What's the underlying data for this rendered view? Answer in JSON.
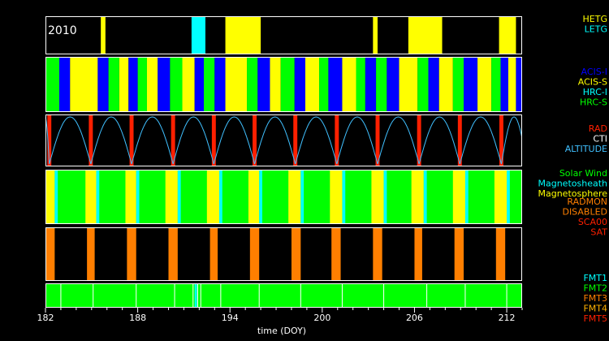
{
  "chart_data": {
    "type": "timeline",
    "year_label": "2010",
    "xlabel": "time (DOY)",
    "xlim": [
      182,
      213
    ],
    "xticks": [
      "182",
      "188",
      "194",
      "200",
      "206",
      "212"
    ],
    "xtick_values": [
      182,
      188,
      194,
      200,
      206,
      212
    ],
    "colors": {
      "yellow": "#ffff00",
      "cyan": "#00ffff",
      "blue": "#0000ff",
      "green": "#00ff00",
      "red": "#ff2000",
      "orange": "#ff7f00",
      "orange_yellow": "#ffb000",
      "white": "#ffffff",
      "black": "#000000",
      "altitude": "#40c0ff"
    },
    "panels": [
      {
        "id": "grating",
        "legend": [
          {
            "label": "HETG",
            "color": "#ffff00"
          },
          {
            "label": "LETG",
            "color": "#00ffff"
          }
        ],
        "background": "#000000",
        "intervals": [
          {
            "start": 185.6,
            "end": 185.9,
            "color": "#ffff00"
          },
          {
            "start": 191.5,
            "end": 192.4,
            "color": "#00ffff"
          },
          {
            "start": 193.7,
            "end": 196.0,
            "color": "#ffff00"
          },
          {
            "start": 203.3,
            "end": 203.6,
            "color": "#ffff00"
          },
          {
            "start": 205.6,
            "end": 207.8,
            "color": "#ffff00"
          },
          {
            "start": 211.5,
            "end": 212.6,
            "color": "#ffff00"
          }
        ]
      },
      {
        "id": "instrument",
        "legend": [
          {
            "label": "ACIS-I",
            "color": "#0000ff"
          },
          {
            "label": "ACIS-S",
            "color": "#ffff00"
          },
          {
            "label": "HRC-I",
            "color": "#00ffff"
          },
          {
            "label": "HRC-S",
            "color": "#00ff00"
          }
        ],
        "background": "#000000",
        "intervals": [
          {
            "start": 182.0,
            "end": 182.9,
            "color": "#00ff00"
          },
          {
            "start": 182.9,
            "end": 183.6,
            "color": "#0000ff"
          },
          {
            "start": 183.6,
            "end": 185.4,
            "color": "#ffff00"
          },
          {
            "start": 185.4,
            "end": 186.1,
            "color": "#0000ff"
          },
          {
            "start": 186.1,
            "end": 186.8,
            "color": "#00ff00"
          },
          {
            "start": 186.8,
            "end": 187.4,
            "color": "#ffff00"
          },
          {
            "start": 187.4,
            "end": 188.0,
            "color": "#0000ff"
          },
          {
            "start": 188.0,
            "end": 188.6,
            "color": "#00ff00"
          },
          {
            "start": 188.6,
            "end": 189.3,
            "color": "#ffff00"
          },
          {
            "start": 189.3,
            "end": 190.1,
            "color": "#0000ff"
          },
          {
            "start": 190.1,
            "end": 190.9,
            "color": "#00ff00"
          },
          {
            "start": 190.9,
            "end": 191.7,
            "color": "#ffff00"
          },
          {
            "start": 191.7,
            "end": 192.3,
            "color": "#0000ff"
          },
          {
            "start": 192.3,
            "end": 193.0,
            "color": "#00ff00"
          },
          {
            "start": 193.0,
            "end": 193.7,
            "color": "#0000ff"
          },
          {
            "start": 193.7,
            "end": 195.1,
            "color": "#ffff00"
          },
          {
            "start": 195.1,
            "end": 195.8,
            "color": "#00ff00"
          },
          {
            "start": 195.8,
            "end": 196.6,
            "color": "#0000ff"
          },
          {
            "start": 196.6,
            "end": 197.3,
            "color": "#ffff00"
          },
          {
            "start": 197.3,
            "end": 198.2,
            "color": "#00ff00"
          },
          {
            "start": 198.2,
            "end": 198.9,
            "color": "#0000ff"
          },
          {
            "start": 198.9,
            "end": 199.8,
            "color": "#ffff00"
          },
          {
            "start": 199.8,
            "end": 200.4,
            "color": "#00ff00"
          },
          {
            "start": 200.4,
            "end": 201.3,
            "color": "#0000ff"
          },
          {
            "start": 201.3,
            "end": 202.2,
            "color": "#ffff00"
          },
          {
            "start": 202.2,
            "end": 202.8,
            "color": "#00ff00"
          },
          {
            "start": 202.8,
            "end": 203.5,
            "color": "#0000ff"
          },
          {
            "start": 203.5,
            "end": 204.2,
            "color": "#00ff00"
          },
          {
            "start": 204.2,
            "end": 205.0,
            "color": "#0000ff"
          },
          {
            "start": 205.0,
            "end": 206.2,
            "color": "#ffff00"
          },
          {
            "start": 206.2,
            "end": 206.9,
            "color": "#00ff00"
          },
          {
            "start": 206.9,
            "end": 207.6,
            "color": "#0000ff"
          },
          {
            "start": 207.6,
            "end": 208.5,
            "color": "#ffff00"
          },
          {
            "start": 208.5,
            "end": 209.2,
            "color": "#00ff00"
          },
          {
            "start": 209.2,
            "end": 210.1,
            "color": "#0000ff"
          },
          {
            "start": 210.1,
            "end": 211.0,
            "color": "#ffff00"
          },
          {
            "start": 211.0,
            "end": 211.6,
            "color": "#00ff00"
          },
          {
            "start": 211.6,
            "end": 212.1,
            "color": "#0000ff"
          },
          {
            "start": 212.1,
            "end": 212.6,
            "color": "#ffff00"
          },
          {
            "start": 212.6,
            "end": 213.0,
            "color": "#0000ff"
          }
        ]
      },
      {
        "id": "radiation",
        "legend": [
          {
            "label": "RAD",
            "color": "#ff2000"
          },
          {
            "label": "CTI",
            "color": "#ffffff"
          },
          {
            "label": "ALTITUDE",
            "color": "#40c0ff"
          }
        ],
        "background": "#000000",
        "perigees": [
          182.25,
          184.95,
          187.6,
          190.3,
          192.95,
          195.6,
          198.25,
          200.95,
          203.6,
          206.3,
          208.95,
          211.65
        ],
        "perigee_halfwidth": 0.13
      },
      {
        "id": "environment",
        "legend": [
          {
            "label": "Solar Wind",
            "color": "#00ff00"
          },
          {
            "label": "Magnetosheath",
            "color": "#00ffff"
          },
          {
            "label": "Magnetosphere",
            "color": "#ffff00"
          }
        ],
        "background": "#00ff00",
        "intervals": [
          {
            "start": 182.0,
            "end": 182.6,
            "color": "#ffff00"
          },
          {
            "start": 182.6,
            "end": 182.8,
            "color": "#00ffff"
          },
          {
            "start": 184.6,
            "end": 185.3,
            "color": "#ffff00"
          },
          {
            "start": 185.3,
            "end": 185.5,
            "color": "#00ffff"
          },
          {
            "start": 187.2,
            "end": 187.9,
            "color": "#ffff00"
          },
          {
            "start": 187.9,
            "end": 188.1,
            "color": "#00ffff"
          },
          {
            "start": 189.8,
            "end": 190.6,
            "color": "#ffff00"
          },
          {
            "start": 190.6,
            "end": 190.8,
            "color": "#00ffff"
          },
          {
            "start": 192.5,
            "end": 193.3,
            "color": "#ffff00"
          },
          {
            "start": 193.3,
            "end": 193.5,
            "color": "#00ffff"
          },
          {
            "start": 195.2,
            "end": 195.9,
            "color": "#ffff00"
          },
          {
            "start": 195.9,
            "end": 196.1,
            "color": "#00ffff"
          },
          {
            "start": 197.8,
            "end": 198.6,
            "color": "#ffff00"
          },
          {
            "start": 198.6,
            "end": 198.8,
            "color": "#00ffff"
          },
          {
            "start": 200.5,
            "end": 201.3,
            "color": "#ffff00"
          },
          {
            "start": 201.3,
            "end": 201.5,
            "color": "#00ffff"
          },
          {
            "start": 203.2,
            "end": 204.0,
            "color": "#ffff00"
          },
          {
            "start": 204.0,
            "end": 204.2,
            "color": "#00ffff"
          },
          {
            "start": 205.8,
            "end": 206.6,
            "color": "#ffff00"
          },
          {
            "start": 206.6,
            "end": 206.8,
            "color": "#00ffff"
          },
          {
            "start": 208.5,
            "end": 209.3,
            "color": "#ffff00"
          },
          {
            "start": 209.3,
            "end": 209.5,
            "color": "#00ffff"
          },
          {
            "start": 211.2,
            "end": 212.0,
            "color": "#ffff00"
          },
          {
            "start": 212.0,
            "end": 212.2,
            "color": "#00ffff"
          }
        ]
      },
      {
        "id": "radmon",
        "legend": [
          {
            "label": "RADMON",
            "color": "#ff7f00"
          },
          {
            "label": "DISABLED",
            "color": "#ff7f00"
          },
          {
            "label": "SCA00",
            "color": "#ff2000"
          },
          {
            "label": "SAT",
            "color": "#ff2000"
          }
        ],
        "background": "#000000",
        "intervals": [
          {
            "start": 182.0,
            "end": 182.6,
            "color": "#ff7f00"
          },
          {
            "start": 184.7,
            "end": 185.2,
            "color": "#ff7f00"
          },
          {
            "start": 187.3,
            "end": 187.9,
            "color": "#ff7f00"
          },
          {
            "start": 190.0,
            "end": 190.6,
            "color": "#ff7f00"
          },
          {
            "start": 192.7,
            "end": 193.2,
            "color": "#ff7f00"
          },
          {
            "start": 195.3,
            "end": 195.9,
            "color": "#ff7f00"
          },
          {
            "start": 198.0,
            "end": 198.6,
            "color": "#ff7f00"
          },
          {
            "start": 200.6,
            "end": 201.2,
            "color": "#ff7f00"
          },
          {
            "start": 203.3,
            "end": 203.9,
            "color": "#ff7f00"
          },
          {
            "start": 206.0,
            "end": 206.5,
            "color": "#ff7f00"
          },
          {
            "start": 208.6,
            "end": 209.2,
            "color": "#ff7f00"
          },
          {
            "start": 211.3,
            "end": 211.9,
            "color": "#ff7f00"
          }
        ]
      },
      {
        "id": "format",
        "legend": [
          {
            "label": "FMT1",
            "color": "#00ffff"
          },
          {
            "label": "FMT2",
            "color": "#00ff00"
          },
          {
            "label": "FMT3",
            "color": "#ff7f00"
          },
          {
            "label": "FMT4",
            "color": "#ffb000"
          },
          {
            "label": "FMT5",
            "color": "#ff2000"
          }
        ],
        "background": "#00ff00",
        "intervals": [
          {
            "start": 191.7,
            "end": 191.85,
            "color": "#00ffff"
          }
        ],
        "ticks": [
          183.0,
          185.1,
          187.9,
          190.4,
          191.6,
          191.9,
          192.1,
          193.4,
          195.9,
          198.6,
          201.3,
          204.0,
          206.8,
          209.3,
          212.0
        ]
      }
    ]
  }
}
